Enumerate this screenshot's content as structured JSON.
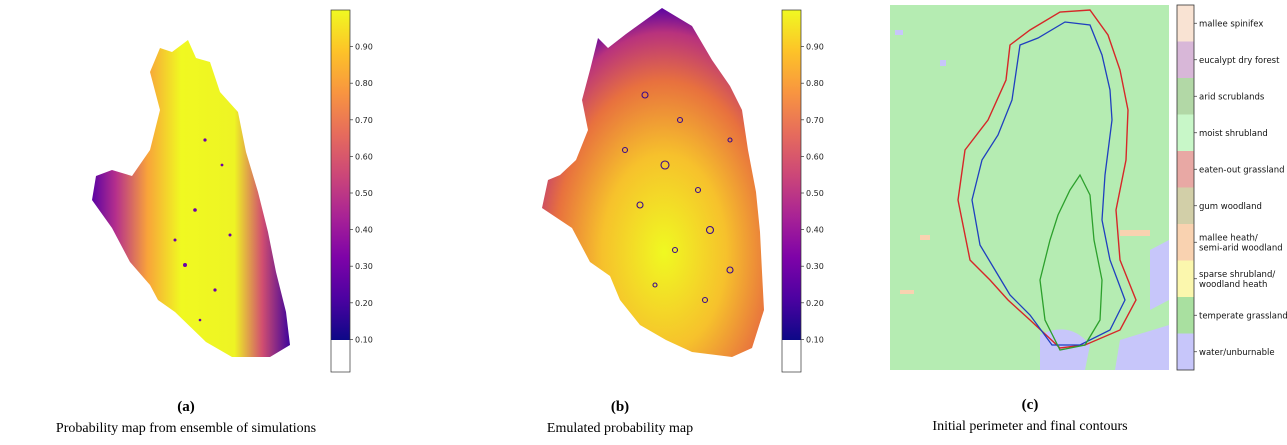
{
  "panels": {
    "a": {
      "letter": "(a)",
      "caption": "Probability map from ensemble of simulations"
    },
    "b": {
      "letter": "(b)",
      "caption": "Emulated probability map"
    },
    "c": {
      "letter": "(c)",
      "caption": "Initial perimeter and final contours"
    }
  },
  "colorbar": {
    "ticks": [
      "0.90",
      "0.80",
      "0.70",
      "0.60",
      "0.50",
      "0.40",
      "0.30",
      "0.20",
      "0.10"
    ],
    "tick_values": [
      0.9,
      0.8,
      0.7,
      0.6,
      0.5,
      0.4,
      0.3,
      0.2,
      0.1
    ],
    "range": [
      0.0,
      1.0
    ],
    "colormap": "plasma",
    "below_min_color": "#ffffff"
  },
  "legend": {
    "items": [
      {
        "label": "mallee spinifex",
        "color": "#f9e3d3"
      },
      {
        "label": "eucalypt dry forest",
        "color": "#d8b7d8"
      },
      {
        "label": "arid scrublands",
        "color": "#b2d8a6"
      },
      {
        "label": "moist shrubland",
        "color": "#c8f7c8"
      },
      {
        "label": "eaten-out grassland",
        "color": "#e8a8a4"
      },
      {
        "label": "gum woodland",
        "color": "#d2cfa8"
      },
      {
        "label": [
          "mallee heath/",
          "semi-arid woodland"
        ],
        "color": "#f9d2b0"
      },
      {
        "label": [
          "sparse shrubland/",
          "woodland heath"
        ],
        "color": "#fbf7ad"
      },
      {
        "label": "temperate grassland",
        "color": "#a9e0a0"
      },
      {
        "label": "water/unburnable",
        "color": "#c7c6fa"
      }
    ]
  },
  "map_c": {
    "background_color": "#b5ecb2",
    "contour_colors": {
      "initial": "#2ca02c",
      "outer": "#d62728",
      "emulated": "#1f3fbf"
    }
  }
}
